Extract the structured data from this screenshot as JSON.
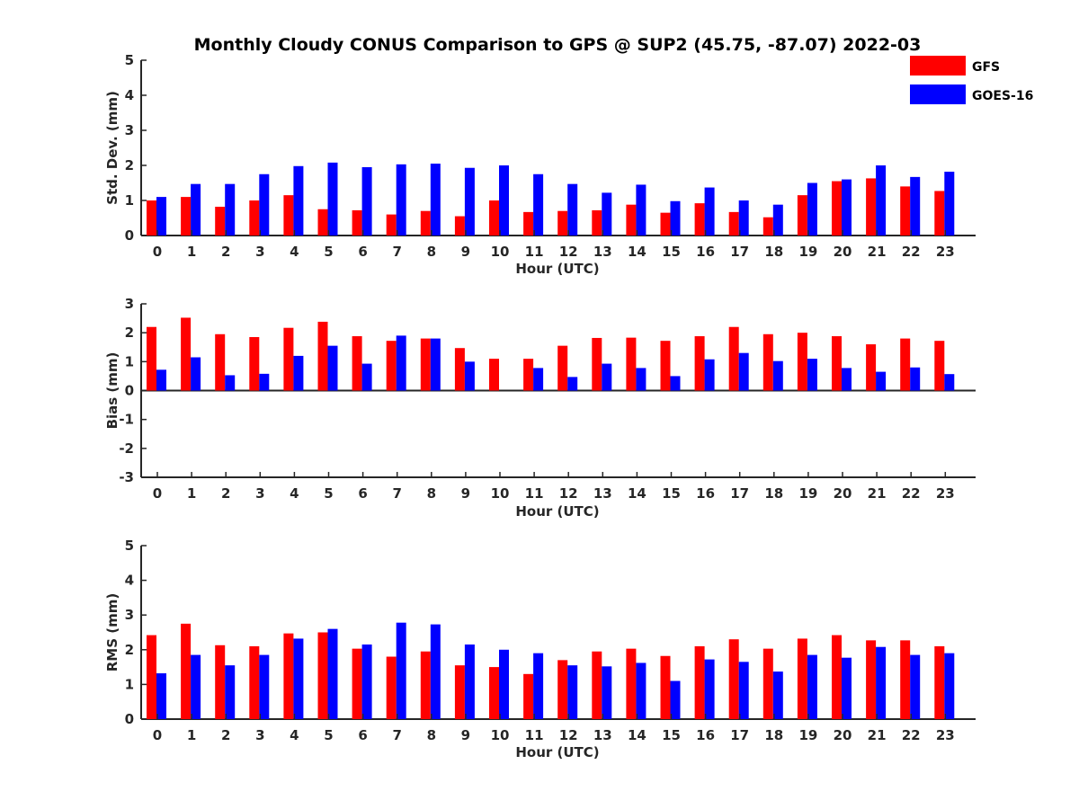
{
  "title": "Monthly Cloudy CONUS Comparison to GPS @ SUP2 (45.75, -87.07) 2022-03",
  "legend": [
    {
      "name": "GFS",
      "color": "#ff0000"
    },
    {
      "name": "GOES-16",
      "color": "#0000ff"
    }
  ],
  "chart_data": [
    {
      "type": "bar",
      "xlabel": "Hour (UTC)",
      "ylabel": "Std. Dev. (mm)",
      "ylim": [
        0,
        5
      ],
      "yticks": [
        "0",
        "1",
        "2",
        "3",
        "4",
        "5"
      ],
      "categories": [
        "0",
        "1",
        "2",
        "3",
        "4",
        "5",
        "6",
        "7",
        "8",
        "9",
        "10",
        "11",
        "12",
        "13",
        "14",
        "15",
        "16",
        "17",
        "18",
        "19",
        "20",
        "21",
        "22",
        "23"
      ],
      "legend_position": "top-right",
      "series": [
        {
          "name": "GFS",
          "color": "#ff0000",
          "values": [
            1.0,
            1.1,
            0.82,
            1.0,
            1.15,
            0.75,
            0.72,
            0.6,
            0.7,
            0.55,
            1.0,
            0.67,
            0.7,
            0.72,
            0.88,
            0.65,
            0.92,
            0.67,
            0.52,
            1.15,
            1.55,
            1.63,
            1.4,
            1.27
          ]
        },
        {
          "name": "GOES-16",
          "color": "#0000ff",
          "values": [
            1.1,
            1.47,
            1.47,
            1.75,
            1.98,
            2.08,
            1.95,
            2.03,
            2.05,
            1.93,
            2.0,
            1.75,
            1.47,
            1.22,
            1.45,
            0.98,
            1.37,
            1.0,
            0.88,
            1.5,
            1.6,
            2.0,
            1.67,
            1.82
          ]
        }
      ]
    },
    {
      "type": "bar",
      "xlabel": "Hour (UTC)",
      "ylabel": "Bias (mm)",
      "ylim": [
        -3,
        3
      ],
      "yticks": [
        "-3",
        "-2",
        "-1",
        "0",
        "1",
        "2",
        "3"
      ],
      "categories": [
        "0",
        "1",
        "2",
        "3",
        "4",
        "5",
        "6",
        "7",
        "8",
        "9",
        "10",
        "11",
        "12",
        "13",
        "14",
        "15",
        "16",
        "17",
        "18",
        "19",
        "20",
        "21",
        "22",
        "23"
      ],
      "series": [
        {
          "name": "GFS",
          "color": "#ff0000",
          "values": [
            2.2,
            2.52,
            1.95,
            1.85,
            2.17,
            2.38,
            1.88,
            1.72,
            1.8,
            1.47,
            1.1,
            1.1,
            1.55,
            1.82,
            1.83,
            1.72,
            1.88,
            2.2,
            1.95,
            2.0,
            1.88,
            1.6,
            1.8,
            1.72
          ]
        },
        {
          "name": "GOES-16",
          "color": "#0000ff",
          "values": [
            0.72,
            1.15,
            0.53,
            0.58,
            1.2,
            1.55,
            0.93,
            1.9,
            1.8,
            1.0,
            0.0,
            0.78,
            0.47,
            0.93,
            0.78,
            0.5,
            1.08,
            1.3,
            1.02,
            1.1,
            0.78,
            0.65,
            0.8,
            0.57
          ]
        }
      ]
    },
    {
      "type": "bar",
      "xlabel": "Hour (UTC)",
      "ylabel": "RMS (mm)",
      "ylim": [
        0,
        5
      ],
      "yticks": [
        "0",
        "1",
        "2",
        "3",
        "4",
        "5"
      ],
      "categories": [
        "0",
        "1",
        "2",
        "3",
        "4",
        "5",
        "6",
        "7",
        "8",
        "9",
        "10",
        "11",
        "12",
        "13",
        "14",
        "15",
        "16",
        "17",
        "18",
        "19",
        "20",
        "21",
        "22",
        "23"
      ],
      "series": [
        {
          "name": "GFS",
          "color": "#ff0000",
          "values": [
            2.42,
            2.75,
            2.13,
            2.1,
            2.47,
            2.5,
            2.03,
            1.8,
            1.95,
            1.55,
            1.5,
            1.3,
            1.7,
            1.95,
            2.03,
            1.82,
            2.1,
            2.3,
            2.03,
            2.32,
            2.42,
            2.27,
            2.27,
            2.1
          ]
        },
        {
          "name": "GOES-16",
          "color": "#0000ff",
          "values": [
            1.32,
            1.85,
            1.55,
            1.85,
            2.32,
            2.6,
            2.15,
            2.78,
            2.73,
            2.15,
            2.0,
            1.9,
            1.55,
            1.52,
            1.62,
            1.1,
            1.72,
            1.65,
            1.37,
            1.85,
            1.77,
            2.08,
            1.85,
            1.9
          ]
        }
      ]
    }
  ]
}
